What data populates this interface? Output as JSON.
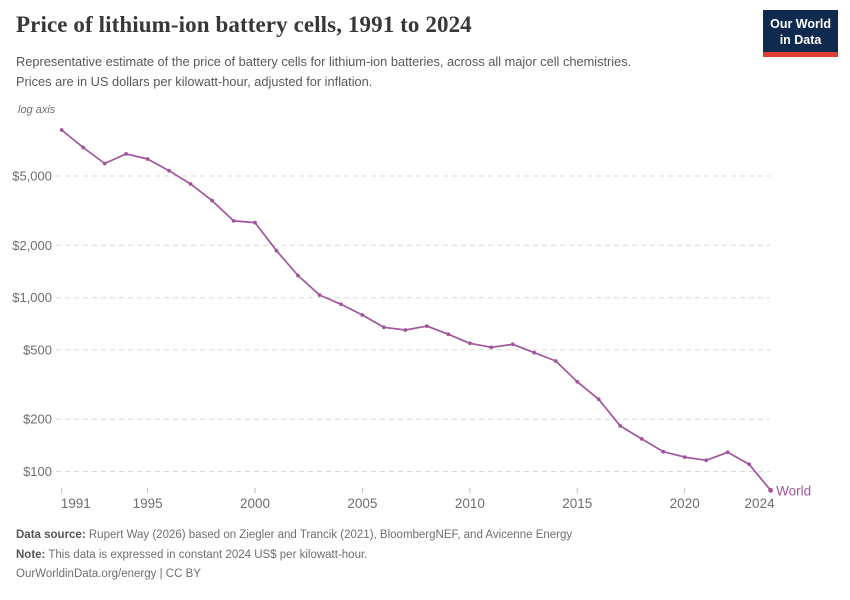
{
  "header": {
    "title": "Price of lithium-ion battery cells, 1991 to 2024",
    "subtitle_line1": "Representative estimate of the price of battery cells for lithium-ion batteries, across all major cell chemistries.",
    "subtitle_line2": "Prices are in US dollars per kilowatt-hour, adjusted for inflation.",
    "logo": {
      "line1": "Our World",
      "line2": "in Data"
    }
  },
  "colors": {
    "accent_purple": "#a2559c",
    "grid": "#dadada",
    "tick": "#bdbdbd",
    "axis_text": "#6e6e6e",
    "logo_bg": "#0e2a4e",
    "logo_red": "#dc3e32"
  },
  "chart_data": {
    "type": "line",
    "title": "Price of lithium-ion battery cells, 1991 to 2024",
    "axis_note": "log axis",
    "yscale": "log",
    "ylim": [
      78,
      9200
    ],
    "grid": "horizontal dashed",
    "legend_position": "end-of-line label",
    "xlabel": "",
    "ylabel": "US dollars per kilowatt-hour (constant 2024 US$)",
    "x": [
      1991,
      1992,
      1993,
      1994,
      1995,
      1996,
      1997,
      1998,
      1999,
      2000,
      2001,
      2002,
      2003,
      2004,
      2005,
      2006,
      2007,
      2008,
      2009,
      2010,
      2011,
      2012,
      2013,
      2014,
      2015,
      2016,
      2017,
      2018,
      2019,
      2020,
      2021,
      2022,
      2023,
      2024
    ],
    "series": [
      {
        "name": "World",
        "color": "#a2559c",
        "values": [
          9200,
          7300,
          5900,
          6700,
          6270,
          5370,
          4500,
          3610,
          2760,
          2700,
          1860,
          1340,
          1035,
          915,
          794,
          675,
          651,
          686,
          615,
          546,
          518,
          539,
          482,
          432,
          328,
          260,
          183,
          154,
          130,
          121,
          116,
          129,
          110,
          78
        ]
      }
    ],
    "end_label": "World",
    "y_ticks": [
      {
        "value": 100,
        "label": "$100"
      },
      {
        "value": 200,
        "label": "$200"
      },
      {
        "value": 500,
        "label": "$500"
      },
      {
        "value": 1000,
        "label": "$1,000"
      },
      {
        "value": 2000,
        "label": "$2,000"
      },
      {
        "value": 5000,
        "label": "$5,000"
      }
    ],
    "x_ticks": [
      {
        "value": 1991,
        "label": "1991"
      },
      {
        "value": 1995,
        "label": "1995"
      },
      {
        "value": 2000,
        "label": "2000"
      },
      {
        "value": 2005,
        "label": "2005"
      },
      {
        "value": 2010,
        "label": "2010"
      },
      {
        "value": 2015,
        "label": "2015"
      },
      {
        "value": 2020,
        "label": "2020"
      },
      {
        "value": 2024,
        "label": "2024"
      }
    ]
  },
  "footer": {
    "source_label": "Data source:",
    "source_text": " Rupert Way (2026) based on Ziegler and Trancik (2021), BloombergNEF, and Avicenne Energy",
    "note_label": "Note:",
    "note_text": " This data is expressed in constant 2024 US$ per kilowatt-hour.",
    "citation": "OurWorldinData.org/energy | CC BY"
  }
}
